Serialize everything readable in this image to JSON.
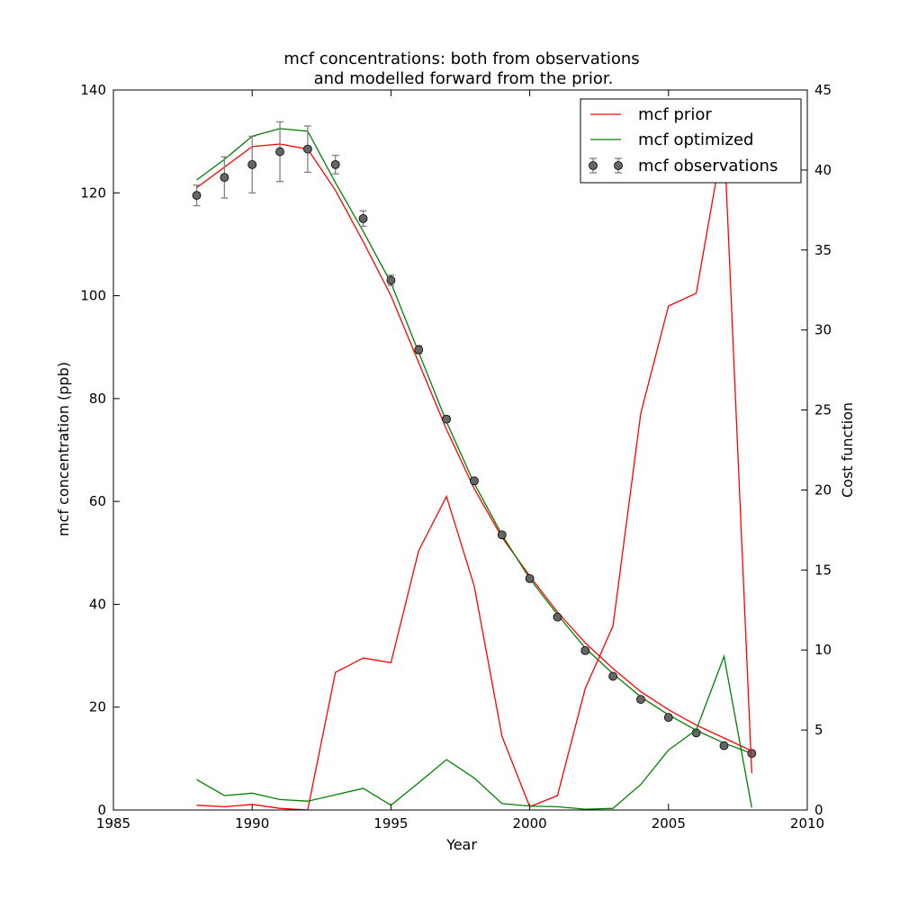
{
  "chart_data": {
    "type": "line",
    "title_lines": [
      "mcf concentrations: both from observations",
      "and modelled forward from the prior."
    ],
    "xlabel": "Year",
    "ylabel": "mcf concentration (ppb)",
    "y2label": "Cost function",
    "xlim": [
      1985,
      2010
    ],
    "ylim": [
      0,
      140
    ],
    "y2lim": [
      0,
      45
    ],
    "xticks": [
      "1985",
      "1990",
      "1995",
      "2000",
      "2005",
      "2010"
    ],
    "yticks": [
      "0",
      "20",
      "40",
      "60",
      "80",
      "100",
      "120",
      "140"
    ],
    "y2ticks": [
      "0",
      "5",
      "10",
      "15",
      "20",
      "25",
      "30",
      "35",
      "40",
      "45"
    ],
    "legend_position": "top-right",
    "legend": [
      "mcf prior",
      "mcf optimized",
      "mcf observations"
    ],
    "x": [
      1988,
      1989,
      1990,
      1991,
      1992,
      1993,
      1994,
      1995,
      1996,
      1997,
      1998,
      1999,
      2000,
      2001,
      2002,
      2003,
      2004,
      2005,
      2006,
      2007,
      2008
    ],
    "series": [
      {
        "name": "mcf prior",
        "axis": "left",
        "color": "#ff0000",
        "values": [
          121.0,
          125.0,
          129.0,
          129.5,
          128.5,
          120.5,
          110.5,
          100.0,
          87.0,
          74.0,
          62.5,
          53.0,
          45.5,
          38.5,
          32.5,
          27.5,
          23.0,
          19.5,
          16.5,
          14.0,
          11.5
        ]
      },
      {
        "name": "mcf optimized",
        "axis": "left",
        "color": "#008000",
        "values": [
          122.5,
          126.5,
          131.0,
          132.5,
          132.0,
          122.0,
          112.5,
          102.5,
          89.0,
          75.5,
          63.5,
          53.5,
          45.0,
          38.0,
          31.5,
          26.5,
          22.0,
          18.5,
          15.5,
          13.0,
          11.0
        ]
      },
      {
        "name": "mcf observations",
        "axis": "left",
        "color": "#666666",
        "type": "errorbar",
        "values": [
          119.5,
          123.0,
          125.5,
          128.0,
          128.5,
          125.5,
          115.0,
          103.0,
          89.5,
          76.0,
          64.0,
          53.5,
          45.0,
          37.5,
          31.0,
          26.0,
          21.5,
          18.0,
          15.0,
          12.5,
          11.0
        ],
        "errors": [
          2.0,
          4.0,
          5.5,
          5.8,
          4.5,
          1.8,
          1.5,
          1.0,
          0.8,
          0.6,
          0.5,
          0.5,
          0.4,
          0.4,
          0.4,
          0.4,
          0.3,
          0.3,
          0.3,
          0.3,
          0.3
        ]
      },
      {
        "name": "",
        "axis": "right",
        "color": "#ff0000",
        "values": [
          0.3,
          0.2,
          0.35,
          0.1,
          0.0,
          8.6,
          9.5,
          9.2,
          16.2,
          19.6,
          14.0,
          4.6,
          0.2,
          0.9,
          7.6,
          11.5,
          24.8,
          31.5,
          32.3,
          42.2,
          2.3
        ]
      },
      {
        "name": "",
        "axis": "right",
        "color": "#008000",
        "values": [
          1.9,
          0.9,
          1.05,
          0.65,
          0.55,
          0.95,
          1.35,
          0.3,
          1.7,
          3.15,
          2.0,
          0.4,
          0.25,
          0.2,
          0.05,
          0.1,
          1.6,
          3.75,
          5.0,
          9.6,
          0.15
        ]
      }
    ]
  }
}
